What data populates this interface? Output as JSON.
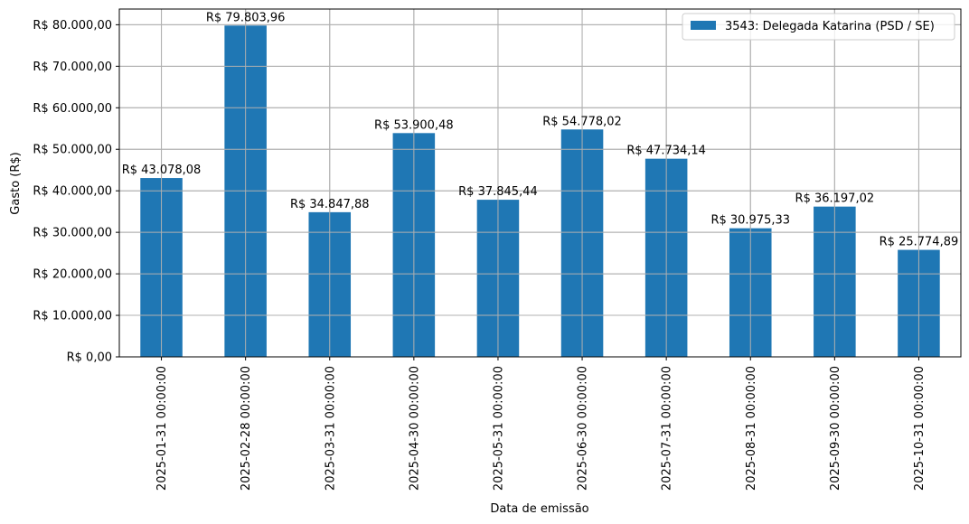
{
  "chart_data": {
    "type": "bar",
    "categories": [
      "2025-01-31 00:00:00",
      "2025-02-28 00:00:00",
      "2025-03-31 00:00:00",
      "2025-04-30 00:00:00",
      "2025-05-31 00:00:00",
      "2025-06-30 00:00:00",
      "2025-07-31 00:00:00",
      "2025-08-31 00:00:00",
      "2025-09-30 00:00:00",
      "2025-10-31 00:00:00"
    ],
    "series": [
      {
        "name": "3543: Delegada Katarina (PSD / SE)",
        "values": [
          43078.08,
          79803.96,
          34847.88,
          53900.48,
          37845.44,
          54778.02,
          47734.14,
          30975.33,
          36197.02,
          25774.89
        ],
        "data_labels": [
          "R$ 43.078,08",
          "R$ 79.803,96",
          "R$ 34.847,88",
          "R$ 53.900,48",
          "R$ 37.845,44",
          "R$ 54.778,02",
          "R$ 47.734,14",
          "R$ 30.975,33",
          "R$ 36.197,02",
          "R$ 25.774,89"
        ],
        "color": "#1f77b4"
      }
    ],
    "xlabel": "Data de emissão",
    "ylabel": "Gasto (R$)",
    "ylim": [
      0,
      83784
    ],
    "yticks": [
      0,
      10000,
      20000,
      30000,
      40000,
      50000,
      60000,
      70000,
      80000
    ],
    "ytick_labels": [
      "R$ 0,00",
      "R$ 10.000,00",
      "R$ 20.000,00",
      "R$ 30.000,00",
      "R$ 40.000,00",
      "R$ 50.000,00",
      "R$ 60.000,00",
      "R$ 70.000,00",
      "R$ 80.000,00"
    ],
    "grid": true,
    "legend_position": "top-right"
  }
}
